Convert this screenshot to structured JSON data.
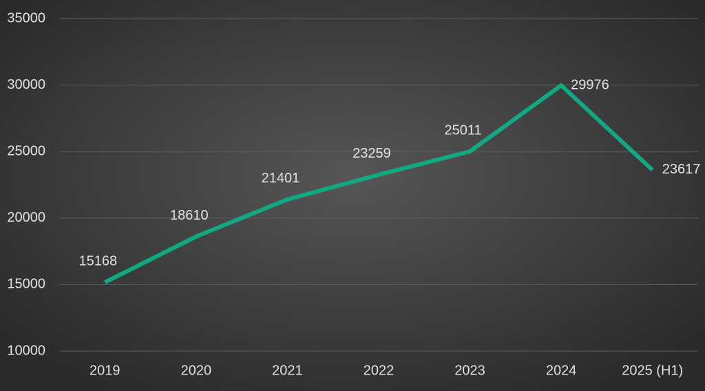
{
  "chart_data": {
    "type": "line",
    "categories": [
      "2019",
      "2020",
      "2021",
      "2022",
      "2023",
      "2024",
      "2025 (H1)"
    ],
    "values": [
      15168,
      18610,
      21401,
      23259,
      25011,
      29976,
      23617
    ],
    "color": "#12a884",
    "ylim": [
      10000,
      35000
    ],
    "yticks": [
      10000,
      15000,
      20000,
      25000,
      30000,
      35000
    ],
    "grid": true
  }
}
